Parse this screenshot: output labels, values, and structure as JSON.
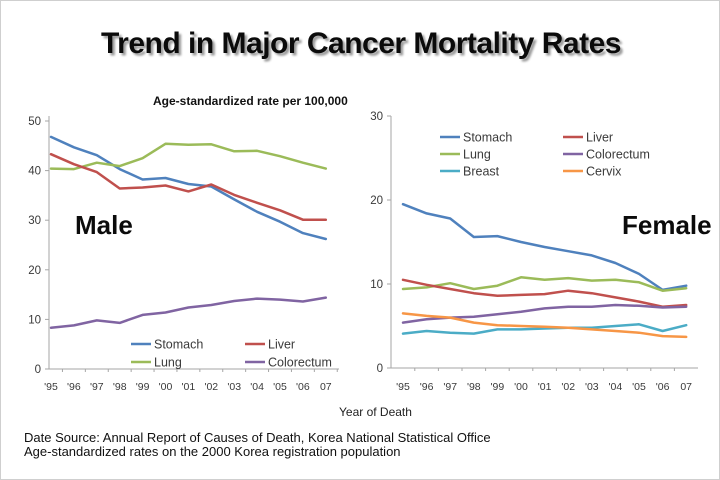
{
  "title": "Trend in Major Cancer Mortality Rates",
  "subtitle": "Age-standardized rate per 100,000",
  "xaxis_title": "Year of Death",
  "footer": {
    "line1": "Date Source: Annual Report of Causes of Death, Korea National Statistical Office",
    "line2": "Age-standardized rates on the 2000 Korea registration population"
  },
  "colors": {
    "stomach": "#4F81BD",
    "liver": "#C0504D",
    "lung": "#9BBB59",
    "colorectum": "#8064A2",
    "breast": "#4BACC6",
    "cervix": "#F79646",
    "axis": "#A6A6A6",
    "tick_label": "#3A3A3A"
  },
  "chart_data": [
    {
      "type": "line",
      "title": "Male",
      "x": [
        "'95",
        "'96",
        "'97",
        "'98",
        "'99",
        "'00",
        "'01",
        "'02",
        "'03",
        "'04",
        "'05",
        "'06",
        "07"
      ],
      "xlabel": "Year of Death",
      "ylabel": "Age-standardized rate per 100,000",
      "ylim": [
        0,
        50
      ],
      "yticks": [
        0,
        10,
        20,
        30,
        40,
        50
      ],
      "grid": false,
      "legend_position": "inside-bottom",
      "series": [
        {
          "name": "Stomach",
          "color": "#4F81BD",
          "values": [
            46.8,
            44.7,
            43.1,
            40.3,
            38.2,
            38.5,
            37.3,
            36.8,
            34.2,
            31.7,
            29.7,
            27.4,
            26.2
          ]
        },
        {
          "name": "Lung",
          "color": "#9BBB59",
          "values": [
            40.4,
            40.3,
            41.6,
            40.9,
            42.5,
            45.4,
            45.2,
            45.3,
            43.9,
            44.0,
            42.9,
            41.6,
            40.4
          ]
        },
        {
          "name": "Liver",
          "color": "#C0504D",
          "values": [
            43.3,
            41.3,
            39.7,
            36.4,
            36.6,
            37.0,
            35.8,
            37.2,
            35.1,
            33.5,
            32.0,
            30.1,
            30.1
          ]
        },
        {
          "name": "Colorectum",
          "color": "#8064A2",
          "values": [
            8.3,
            8.8,
            9.8,
            9.3,
            10.9,
            11.4,
            12.4,
            12.9,
            13.7,
            14.2,
            14.0,
            13.6,
            14.4
          ]
        }
      ]
    },
    {
      "type": "line",
      "title": "Female",
      "x": [
        "'95",
        "'96",
        "'97",
        "'98",
        "'99",
        "'00",
        "'01",
        "'02",
        "'03",
        "'04",
        "'05",
        "'06",
        "07"
      ],
      "xlabel": "Year of Death",
      "ylabel": "Age-standardized rate per 100,000",
      "ylim": [
        0,
        30
      ],
      "yticks": [
        0,
        10,
        20,
        30
      ],
      "grid": false,
      "legend_position": "inside-top",
      "series": [
        {
          "name": "Stomach",
          "color": "#4F81BD",
          "values": [
            19.5,
            18.4,
            17.8,
            15.6,
            15.7,
            15.0,
            14.4,
            13.9,
            13.4,
            12.5,
            11.2,
            9.3,
            9.8
          ]
        },
        {
          "name": "Lung",
          "color": "#9BBB59",
          "values": [
            9.4,
            9.6,
            10.1,
            9.4,
            9.8,
            10.8,
            10.5,
            10.7,
            10.4,
            10.5,
            10.2,
            9.2,
            9.5
          ]
        },
        {
          "name": "Breast",
          "color": "#4BACC6",
          "values": [
            4.1,
            4.4,
            4.2,
            4.1,
            4.6,
            4.6,
            4.7,
            4.8,
            4.8,
            5.0,
            5.2,
            4.4,
            5.1
          ]
        },
        {
          "name": "Liver",
          "color": "#C0504D",
          "values": [
            10.5,
            9.9,
            9.4,
            8.9,
            8.6,
            8.7,
            8.8,
            9.2,
            8.9,
            8.4,
            7.9,
            7.3,
            7.5
          ]
        },
        {
          "name": "Colorectum",
          "color": "#8064A2",
          "values": [
            5.4,
            5.8,
            6.0,
            6.1,
            6.4,
            6.7,
            7.1,
            7.3,
            7.3,
            7.5,
            7.4,
            7.2,
            7.3
          ]
        },
        {
          "name": "Cervix",
          "color": "#F79646",
          "values": [
            6.5,
            6.2,
            6.0,
            5.4,
            5.1,
            5.0,
            4.9,
            4.8,
            4.6,
            4.4,
            4.2,
            3.8,
            3.7
          ]
        }
      ]
    }
  ]
}
